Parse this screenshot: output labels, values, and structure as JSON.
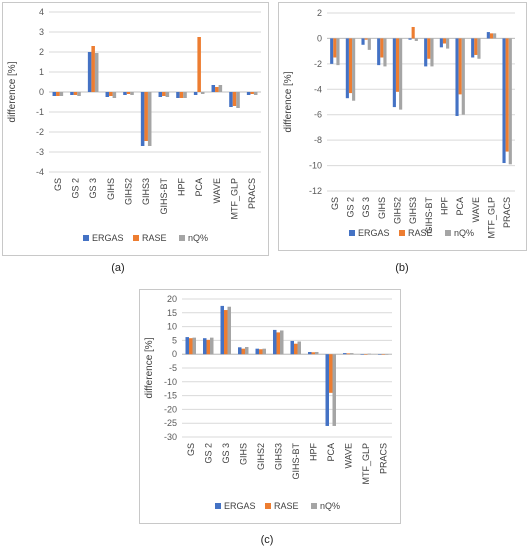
{
  "colors": {
    "ERGAS": "#4472c4",
    "RASE": "#ed7d31",
    "nQ%": "#a5a5a5"
  },
  "chart_data": [
    {
      "type": "bar",
      "ylabel": "difference [%]",
      "ylim": [
        -4,
        4
      ],
      "yticks": [
        4,
        3,
        2,
        1,
        0,
        -1,
        -2,
        -3,
        -4
      ],
      "grid": true,
      "legend": "bottom",
      "categories": [
        "GS",
        "GS 2",
        "GS 3",
        "GIHS",
        "GIHS2",
        "GIHS3",
        "GIHS-BT",
        "HPF",
        "PCA",
        "WAVE",
        "MTF_GLP",
        "PRACS"
      ],
      "series": [
        {
          "name": "ERGAS",
          "values": [
            -0.2,
            -0.15,
            2.0,
            -0.25,
            -0.15,
            -2.7,
            -0.25,
            -0.3,
            -0.15,
            0.35,
            -0.75,
            -0.15
          ]
        },
        {
          "name": "RASE",
          "values": [
            -0.2,
            -0.15,
            2.3,
            -0.2,
            -0.1,
            -2.45,
            -0.2,
            -0.3,
            2.75,
            0.25,
            -0.7,
            -0.1
          ]
        },
        {
          "name": "nQ%",
          "values": [
            -0.2,
            -0.2,
            1.95,
            -0.3,
            -0.15,
            -2.7,
            -0.25,
            -0.3,
            -0.1,
            0.35,
            -0.8,
            -0.15
          ]
        }
      ],
      "caption": "(a)"
    },
    {
      "type": "bar",
      "ylabel": "difference [%]",
      "ylim": [
        -12,
        2
      ],
      "yticks": [
        2,
        0,
        -2,
        -4,
        -6,
        -8,
        -10,
        -12
      ],
      "grid": true,
      "legend": "bottom",
      "categories": [
        "GS",
        "GS 2",
        "GS 3",
        "GIHS",
        "GIHS2",
        "GIHS3",
        "GIHS-BT",
        "HPF",
        "PCA",
        "WAVE",
        "MTF_GLP",
        "PRACS"
      ],
      "series": [
        {
          "name": "ERGAS",
          "values": [
            -2.0,
            -4.7,
            -0.5,
            -2.1,
            -5.4,
            -0.1,
            -2.2,
            -0.7,
            -6.1,
            -1.5,
            0.5,
            -9.8
          ]
        },
        {
          "name": "RASE",
          "values": [
            -1.5,
            -4.3,
            -0.1,
            -1.5,
            -4.2,
            0.9,
            -1.6,
            -0.4,
            -4.4,
            -1.3,
            0.4,
            -8.9
          ]
        },
        {
          "name": "nQ%",
          "values": [
            -2.1,
            -4.9,
            -0.9,
            -2.2,
            -5.6,
            -0.2,
            -2.2,
            -0.8,
            -6.0,
            -1.6,
            0.4,
            -9.9
          ]
        }
      ],
      "caption": "(b)"
    },
    {
      "type": "bar",
      "ylabel": "difference [%]",
      "ylim": [
        -30,
        20
      ],
      "yticks": [
        20,
        15,
        10,
        5,
        0,
        -5,
        -10,
        -15,
        -20,
        -25,
        -30
      ],
      "grid": true,
      "legend": "bottom",
      "categories": [
        "GS",
        "GS 2",
        "GS 3",
        "GIHS",
        "GIHS2",
        "GIHS3",
        "GIHS-BT",
        "HPF",
        "PCA",
        "WAVE",
        "MTF_GLP",
        "PRACS"
      ],
      "series": [
        {
          "name": "ERGAS",
          "values": [
            6.2,
            5.8,
            17.5,
            2.5,
            2.0,
            8.8,
            4.8,
            0.8,
            -26.0,
            0.4,
            0.0,
            0.0
          ]
        },
        {
          "name": "RASE",
          "values": [
            5.8,
            5.2,
            16.0,
            2.0,
            1.8,
            7.9,
            3.8,
            0.7,
            -14.0,
            0.3,
            0.0,
            0.0
          ]
        },
        {
          "name": "nQ%",
          "values": [
            6.0,
            6.0,
            17.2,
            2.6,
            2.0,
            8.6,
            4.6,
            0.8,
            -26.0,
            0.4,
            0.2,
            0.0
          ]
        }
      ],
      "caption": "(c)"
    }
  ]
}
